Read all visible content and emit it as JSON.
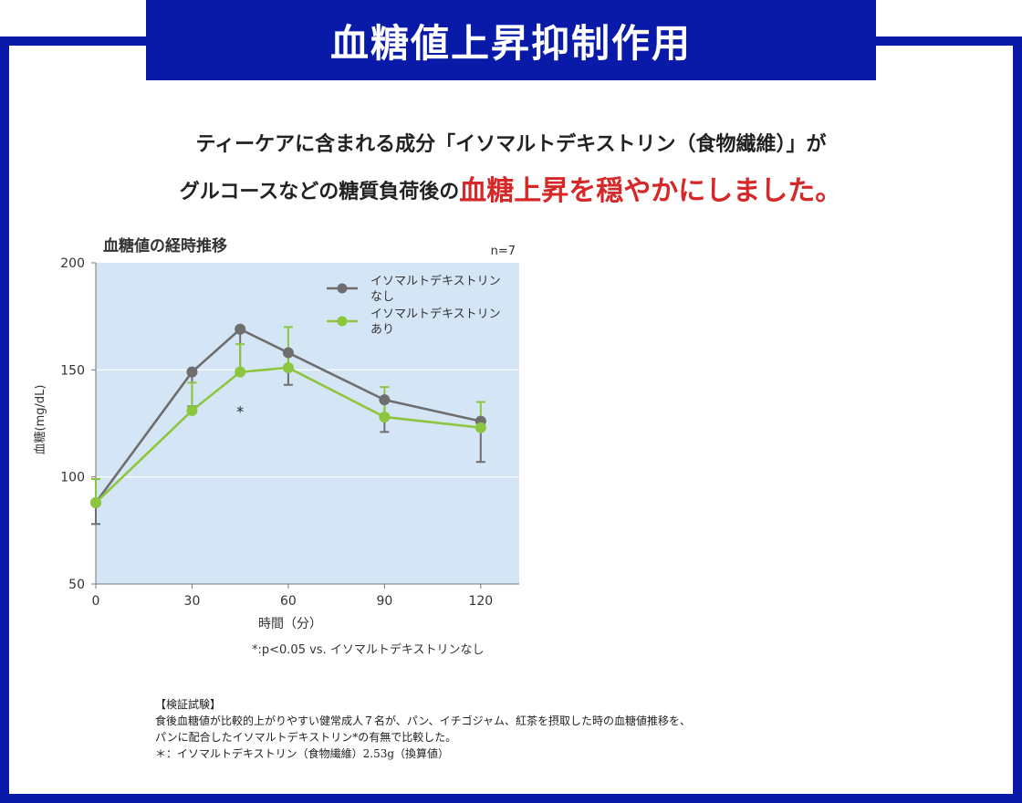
{
  "banner": {
    "title": "血糖値上昇抑制作用"
  },
  "headline": {
    "line1": "ティーケアに含まれる成分「イソマルトデキストリン（食物繊維）」が",
    "line2_prefix": "グルコースなどの糖質負荷後の",
    "line2_emphasis": "血糖上昇を穏やかにしました。"
  },
  "chart_data": {
    "type": "line",
    "title": "血糖値の経時推移",
    "sample_note": "n=7",
    "xlabel": "時間（分）",
    "ylabel": "血糖(mg/dL)",
    "x": [
      0,
      30,
      45,
      60,
      90,
      120
    ],
    "xticks": [
      0,
      30,
      60,
      90,
      120
    ],
    "yticks": [
      50,
      100,
      150,
      200
    ],
    "xlim": [
      0,
      132
    ],
    "ylim": [
      50,
      200
    ],
    "grid": "horizontal",
    "legend_position": "top-right",
    "series": [
      {
        "name": "イソマルトデキストリンなし",
        "label_lines": [
          "イソマルトデキストリン",
          "なし"
        ],
        "color": "#6e6e6e",
        "values": [
          88,
          149,
          169,
          158,
          136,
          126
        ],
        "error": [
          10,
          16,
          20,
          15,
          15,
          19
        ]
      },
      {
        "name": "イソマルトデキストリンあり",
        "label_lines": [
          "イソマルトデキストリン",
          "あり"
        ],
        "color": "#8cc63f",
        "values": [
          88,
          131,
          149,
          151,
          128,
          123
        ],
        "error": [
          11,
          13,
          13,
          19,
          14,
          12
        ]
      }
    ],
    "annotations": [
      {
        "x": 45,
        "y": 130,
        "text": "*"
      }
    ],
    "significance_note": "*:p<0.05 vs. イソマルトデキストリンなし",
    "colors": {
      "plot_background": "#d4e5f5",
      "grid": "#ffffff"
    }
  },
  "notes": {
    "heading": "【検証試験】",
    "line1": "食後血糖値が比較的上がりやすい健常成人７名が、パン、イチゴジャム、紅茶を摂取した時の血糖値推移を、",
    "line2": "パンに配合したイソマルトデキストリン*の有無で比較した。",
    "line3": "＊：イソマルトデキストリン（食物繊維）2.53g（換算値）"
  },
  "colors": {
    "frame": "#0a1aa8",
    "emphasis": "#d62828"
  }
}
